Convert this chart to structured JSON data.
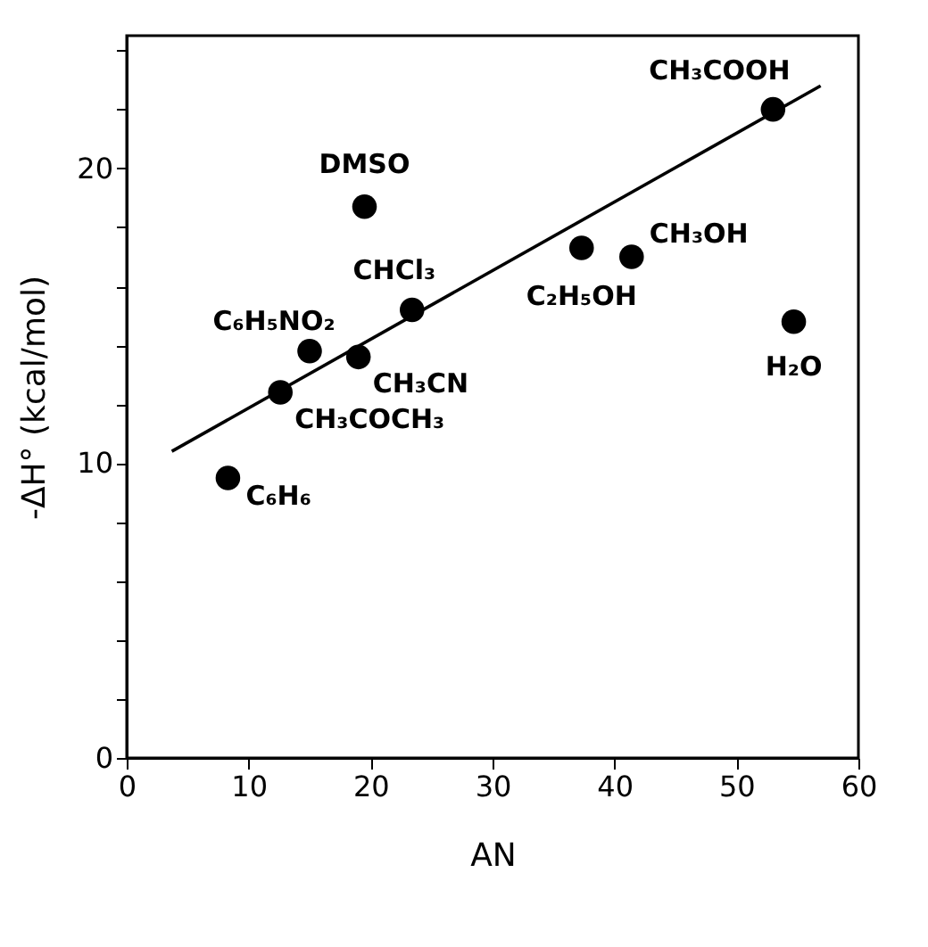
{
  "chart_data": {
    "type": "scatter",
    "xlabel": "AN",
    "ylabel": "-ΔH° (kcal/mol)",
    "xlim": [
      0,
      60
    ],
    "ylim": [
      0,
      24.5
    ],
    "xticks": [
      0,
      10,
      20,
      30,
      40,
      50,
      60
    ],
    "yticks": [
      0,
      {
        "value": 2,
        "label": null
      },
      {
        "value": 4,
        "label": null
      },
      {
        "value": 6,
        "label": null
      },
      {
        "value": 8,
        "label": null
      },
      10,
      {
        "value": 12,
        "label": null
      },
      {
        "value": 14,
        "label": null
      },
      {
        "value": 16,
        "label": null
      },
      {
        "value": 18,
        "label": null
      },
      20,
      {
        "value": 22,
        "label": null
      },
      {
        "value": 24,
        "label": null
      }
    ],
    "grid": false,
    "marker": "circle",
    "series": [
      {
        "color": "#000000",
        "x": [
          53,
          19.5,
          37.3,
          41.4,
          54.7,
          23.4,
          15,
          19,
          12.6,
          8.3
        ],
        "values": [
          22,
          18.7,
          17.3,
          17,
          14.8,
          15.2,
          13.8,
          13.6,
          12.4,
          9.5
        ]
      },
      {
        "type": "line",
        "color": "#000000",
        "marker": "none",
        "x": [
          3.7,
          56.9
        ],
        "values": [
          10.4,
          22.8
        ]
      }
    ],
    "annotations": [
      {
        "text": "CH₃COOH",
        "x": 53,
        "y": 22
      },
      {
        "text": "DMSO",
        "x": 19.5,
        "y": 18.7
      },
      {
        "text": "C₂H₅OH",
        "x": 37.3,
        "y": 17.3
      },
      {
        "text": "CH₃OH",
        "x": 41.4,
        "y": 17
      },
      {
        "text": "H₂O",
        "x": 54.7,
        "y": 14.8
      },
      {
        "text": "CHCl₃",
        "x": 23.4,
        "y": 15.2
      },
      {
        "text": "C₆H₅NO₂",
        "x": 15,
        "y": 13.8
      },
      {
        "text": "CH₃CN",
        "x": 19,
        "y": 13.6
      },
      {
        "text": "CH₃COCH₃",
        "x": 12.6,
        "y": 12.4
      },
      {
        "text": "C₆H₆",
        "x": 8.3,
        "y": 9.5
      }
    ]
  }
}
